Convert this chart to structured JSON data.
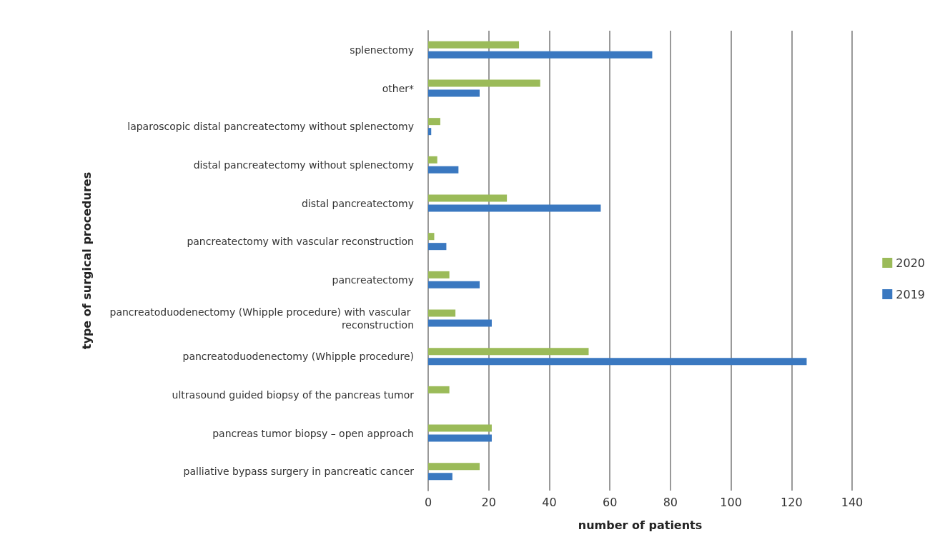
{
  "chart_data": {
    "type": "bar",
    "orientation": "horizontal",
    "xlabel": "number of patients",
    "ylabel": "type of surgical procedures",
    "categories": [
      "splenectomy",
      "other*",
      "laparoscopic distal pancreatectomy without splenectomy",
      "distal pancreatectomy without splenectomy",
      "distal pancreatectomy",
      "pancreatectomy with vascular reconstruction",
      "pancreatectomy",
      "pancreatoduodenectomy (Whipple procedure) with vascular reconstruction",
      "pancreatoduodenectomy (Whipple procedure)",
      "ultrasound guided biopsy of the pancreas tumor",
      "pancreas tumor biopsy – open approach",
      "palliative bypass surgery in pancreatic cancer"
    ],
    "series": [
      {
        "name": "2020",
        "color": "#9bbb59",
        "values": [
          30,
          37,
          4,
          3,
          26,
          2,
          7,
          9,
          53,
          7,
          21,
          17
        ]
      },
      {
        "name": "2019",
        "color": "#3a78c0",
        "values": [
          74,
          17,
          1,
          10,
          57,
          6,
          17,
          21,
          125,
          0,
          21,
          8
        ]
      }
    ],
    "xlim": [
      0,
      140
    ],
    "xticks": [
      0,
      20,
      40,
      60,
      80,
      100,
      120,
      140
    ],
    "grid": "x",
    "legend": "right"
  }
}
